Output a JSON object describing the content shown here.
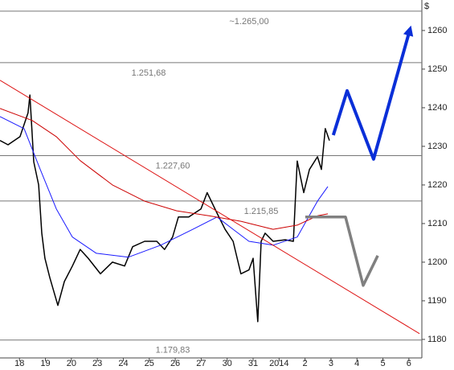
{
  "chart_data": {
    "type": "line",
    "y_axis_label": "$",
    "xlim": [
      -0.75,
      15.5
    ],
    "ylim": [
      1175.2,
      1267.9
    ],
    "yticks": [
      1180,
      1190,
      1200,
      1210,
      1220,
      1230,
      1240,
      1250,
      1260
    ],
    "xticks": [
      {
        "value": 0,
        "label": "18"
      },
      {
        "value": 1,
        "label": "19"
      },
      {
        "value": 2,
        "label": "20"
      },
      {
        "value": 3,
        "label": "23"
      },
      {
        "value": 4,
        "label": "24"
      },
      {
        "value": 5,
        "label": "25"
      },
      {
        "value": 6,
        "label": "26"
      },
      {
        "value": 7,
        "label": "27"
      },
      {
        "value": 8,
        "label": "30"
      },
      {
        "value": 9,
        "label": "31"
      },
      {
        "value": 10,
        "label": "2014"
      },
      {
        "value": 11,
        "label": "2"
      },
      {
        "value": 12,
        "label": "3"
      },
      {
        "value": 13,
        "label": "4"
      },
      {
        "value": 14,
        "label": "5"
      },
      {
        "value": 15,
        "label": "6"
      }
    ],
    "levels": [
      {
        "value": 1265,
        "label": "~1.265,00"
      },
      {
        "value": 1251.68,
        "label": "1.251,68"
      },
      {
        "value": 1227.6,
        "label": "1.227,60"
      },
      {
        "value": 1215.85,
        "label": "1.215,85"
      },
      {
        "value": 1179.83,
        "label": "1.179,83"
      }
    ],
    "series": [
      {
        "color": "#000000",
        "x": [
          -0.75,
          -0.44,
          0.02,
          0.33,
          0.4,
          0.55,
          0.74,
          0.86,
          0.98,
          1.17,
          1.48,
          1.73,
          2.04,
          2.34,
          2.65,
          3.12,
          3.58,
          4.05,
          4.36,
          4.82,
          5.29,
          5.59,
          5.9,
          6.12,
          6.52,
          6.99,
          7.23,
          7.61,
          7.92,
          8.23,
          8.53,
          8.84,
          9.0,
          9.18,
          9.31,
          9.46,
          9.77,
          10.24,
          10.55,
          10.7,
          10.95,
          11.17,
          11.48,
          11.63,
          11.78,
          11.94
        ],
        "values": [
          1231.5,
          1230.4,
          1232.5,
          1238.7,
          1243.3,
          1226,
          1220,
          1207.5,
          1201,
          1196,
          1188.8,
          1195,
          1199,
          1203.3,
          1201,
          1197,
          1200,
          1199,
          1204,
          1205.4,
          1205.4,
          1203.3,
          1206.5,
          1211.7,
          1211.7,
          1213.8,
          1218,
          1212.7,
          1208.5,
          1205.4,
          1197,
          1198,
          1201,
          1184.6,
          1205.4,
          1207.5,
          1205.4,
          1205.8,
          1205.4,
          1226.2,
          1218,
          1224,
          1227.3,
          1224,
          1234.6,
          1231.5
        ]
      },
      {
        "color": "#1a1aff",
        "x": [
          -0.75,
          0.18,
          0.8,
          1.42,
          2.04,
          2.96,
          4.2,
          5.44,
          6.68,
          7.61,
          8.23,
          8.84,
          9.77,
          10.7,
          11.48,
          11.88
        ],
        "values": [
          1237.7,
          1234.6,
          1224,
          1213.8,
          1206.5,
          1202.3,
          1201.3,
          1204.4,
          1208.5,
          1211.7,
          1208.5,
          1205.4,
          1204.4,
          1206.5,
          1215.8,
          1219.6
        ]
      },
      {
        "color": "#cc0000",
        "x": [
          -0.75,
          0.49,
          1.42,
          2.34,
          3.58,
          4.82,
          6.06,
          7.3,
          8.53,
          9.77,
          10.7,
          11.48,
          11.88
        ],
        "values": [
          1239.8,
          1236.7,
          1232.5,
          1226.3,
          1220,
          1215.8,
          1213.3,
          1212,
          1210.6,
          1208.5,
          1209.6,
          1212,
          1212.5
        ]
      },
      {
        "color": "#dd1111",
        "x": [
          -0.75,
          15.41
        ],
        "values": [
          1247.1,
          1181.5
        ]
      },
      {
        "color": "#0a2fd8",
        "x": [
          12.09,
          12.62,
          13.64,
          15.03
        ],
        "values": [
          1232.9,
          1244.4,
          1226.7,
          1260
        ]
      },
      {
        "color": "#808080",
        "x": [
          11.01,
          12.56,
          13.24,
          13.8
        ],
        "values": [
          1211.7,
          1211.7,
          1194,
          1201.7
        ]
      }
    ]
  }
}
